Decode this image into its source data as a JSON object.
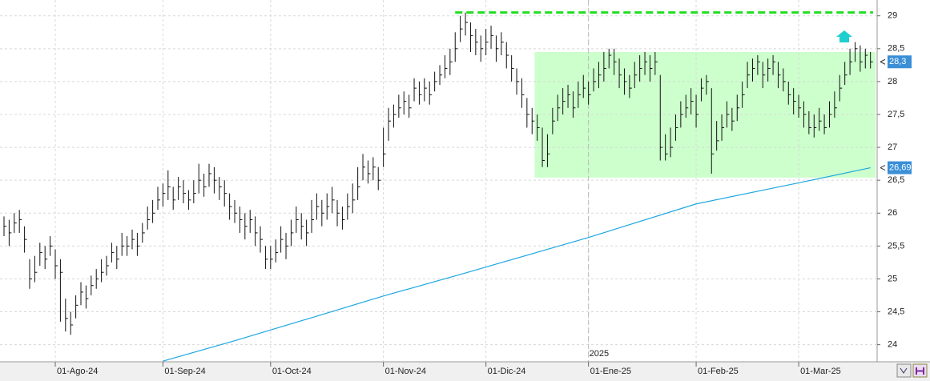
{
  "chart_data": {
    "type": "ohlc",
    "color": "#111111",
    "xlim": [
      -0.78,
      170.3
    ],
    "ylim": [
      23.74,
      29.24
    ],
    "grid": true,
    "yticks": [
      24,
      {
        "value": 24.5,
        "label": "24,5"
      },
      25,
      {
        "value": 25.5,
        "label": "25,5"
      },
      26,
      {
        "value": 26.5,
        "label": "26,5"
      },
      27,
      {
        "value": 27.5,
        "label": "27,5"
      },
      28,
      {
        "value": 28.5,
        "label": "28,5"
      },
      29
    ],
    "xticks": [
      {
        "value": 10,
        "label": "01-Ago-24"
      },
      {
        "value": 31,
        "label": "01-Sep-24"
      },
      {
        "value": 52,
        "label": "01-Oct-24"
      },
      {
        "value": 74,
        "label": "01-Nov-24"
      },
      {
        "value": 94,
        "label": "01-Dic-24"
      },
      {
        "value": 114,
        "label": "01-Ene-25"
      },
      {
        "value": 135,
        "label": "01-Feb-25"
      },
      {
        "value": 155,
        "label": "01-Mar-25"
      }
    ],
    "year_label": {
      "value": 114,
      "label": "2025"
    },
    "high": [
      25.95,
      25.9,
      26.0,
      26.05,
      25.8,
      25.3,
      25.35,
      25.55,
      25.5,
      25.65,
      25.45,
      25.3,
      24.7,
      24.5,
      24.75,
      24.95,
      24.9,
      25.05,
      25.15,
      25.3,
      25.35,
      25.55,
      25.5,
      25.7,
      25.65,
      25.75,
      25.7,
      25.85,
      26.1,
      26.2,
      26.4,
      26.45,
      26.65,
      26.4,
      26.55,
      26.5,
      26.35,
      26.5,
      26.75,
      26.6,
      26.75,
      26.7,
      26.55,
      26.5,
      26.3,
      26.2,
      26.1,
      26.0,
      26.05,
      25.95,
      25.8,
      25.5,
      25.5,
      25.6,
      25.8,
      25.7,
      25.9,
      26.1,
      26.0,
      25.9,
      26.2,
      26.3,
      26.2,
      26.3,
      26.4,
      26.2,
      26.1,
      26.3,
      26.45,
      26.7,
      26.9,
      26.8,
      26.85,
      26.7,
      27.3,
      27.6,
      27.65,
      27.8,
      27.85,
      27.8,
      28.05,
      28.0,
      28.05,
      28.0,
      28.15,
      28.25,
      28.4,
      28.5,
      28.75,
      29.0,
      29.05,
      28.9,
      28.8,
      28.7,
      28.8,
      28.85,
      28.7,
      28.75,
      28.6,
      28.4,
      28.2,
      28.05,
      27.75,
      27.6,
      27.5,
      27.3,
      27.2,
      27.6,
      27.8,
      27.9,
      27.95,
      27.85,
      28.0,
      28.1,
      28.0,
      28.2,
      28.3,
      28.45,
      28.5,
      28.5,
      28.35,
      28.2,
      28.1,
      28.3,
      28.4,
      28.45,
      28.4,
      28.45,
      28.1,
      27.2,
      27.3,
      27.5,
      27.7,
      27.8,
      27.9,
      27.8,
      28.05,
      28.1,
      27.9,
      27.4,
      27.5,
      27.7,
      27.6,
      27.8,
      28.0,
      28.3,
      28.35,
      28.4,
      28.3,
      28.35,
      28.4,
      28.3,
      28.2,
      28.0,
      27.9,
      27.8,
      27.7,
      27.55,
      27.5,
      27.6,
      27.5,
      27.7,
      27.85,
      28.1,
      28.3,
      28.5,
      28.6,
      28.55,
      28.5,
      28.45
    ],
    "low": [
      25.65,
      25.5,
      25.7,
      25.7,
      25.4,
      24.85,
      24.95,
      25.2,
      25.15,
      25.35,
      25.0,
      24.35,
      24.2,
      24.15,
      24.4,
      24.6,
      24.55,
      24.75,
      24.85,
      24.95,
      25.05,
      25.25,
      25.15,
      25.35,
      25.35,
      25.45,
      25.35,
      25.55,
      25.75,
      25.85,
      26.05,
      26.1,
      26.2,
      26.05,
      26.2,
      26.15,
      26.05,
      26.15,
      26.3,
      26.25,
      26.4,
      26.3,
      26.2,
      26.1,
      25.9,
      25.85,
      25.7,
      25.6,
      25.7,
      25.5,
      25.4,
      25.15,
      25.15,
      25.25,
      25.4,
      25.3,
      25.5,
      25.7,
      25.6,
      25.5,
      25.7,
      25.9,
      25.8,
      25.9,
      26.0,
      25.8,
      25.75,
      25.9,
      26.0,
      26.2,
      26.5,
      26.45,
      26.5,
      26.35,
      26.7,
      27.1,
      27.3,
      27.45,
      27.5,
      27.45,
      27.7,
      27.65,
      27.7,
      27.65,
      27.85,
      27.95,
      28.05,
      28.1,
      28.3,
      28.6,
      28.7,
      28.45,
      28.4,
      28.3,
      28.4,
      28.5,
      28.3,
      28.4,
      28.2,
      28.0,
      27.8,
      27.6,
      27.3,
      27.2,
      27.1,
      26.7,
      26.7,
      27.2,
      27.4,
      27.5,
      27.6,
      27.45,
      27.6,
      27.75,
      27.65,
      27.85,
      27.9,
      28.0,
      28.2,
      28.1,
      27.9,
      27.8,
      27.75,
      27.9,
      28.0,
      28.1,
      28.0,
      28.1,
      26.8,
      26.8,
      26.85,
      27.1,
      27.3,
      27.45,
      27.5,
      27.3,
      27.7,
      27.8,
      26.6,
      26.95,
      27.1,
      27.3,
      27.25,
      27.4,
      27.6,
      27.9,
      28.0,
      28.1,
      27.9,
      28.0,
      28.1,
      27.9,
      27.85,
      27.65,
      27.5,
      27.45,
      27.3,
      27.2,
      27.15,
      27.25,
      27.2,
      27.3,
      27.45,
      27.7,
      27.95,
      28.1,
      28.3,
      28.15,
      28.2,
      28.2
    ],
    "close": [
      25.8,
      25.7,
      25.85,
      25.9,
      25.6,
      25.0,
      25.1,
      25.4,
      25.3,
      25.5,
      25.2,
      25.1,
      24.4,
      24.3,
      24.6,
      24.8,
      24.7,
      24.9,
      25.0,
      25.1,
      25.2,
      25.4,
      25.3,
      25.5,
      25.5,
      25.6,
      25.5,
      25.7,
      25.9,
      26.0,
      26.2,
      26.3,
      26.4,
      26.2,
      26.4,
      26.3,
      26.2,
      26.3,
      26.5,
      26.4,
      26.6,
      26.5,
      26.4,
      26.3,
      26.1,
      26.0,
      25.9,
      25.8,
      25.9,
      25.7,
      25.6,
      25.3,
      25.3,
      25.4,
      25.6,
      25.5,
      25.7,
      25.9,
      25.8,
      25.7,
      25.9,
      26.1,
      26.0,
      26.1,
      26.2,
      26.0,
      25.9,
      26.1,
      26.2,
      26.4,
      26.7,
      26.6,
      26.7,
      26.5,
      26.9,
      27.4,
      27.5,
      27.6,
      27.7,
      27.6,
      27.9,
      27.8,
      27.9,
      27.8,
      28.0,
      28.1,
      28.2,
      28.3,
      28.5,
      28.8,
      28.9,
      28.7,
      28.6,
      28.5,
      28.6,
      28.7,
      28.5,
      28.6,
      28.4,
      28.2,
      28.0,
      27.8,
      27.5,
      27.4,
      27.3,
      26.8,
      26.9,
      27.4,
      27.6,
      27.7,
      27.8,
      27.6,
      27.8,
      27.9,
      27.8,
      28.0,
      28.1,
      28.2,
      28.4,
      28.3,
      28.1,
      28.0,
      27.9,
      28.1,
      28.2,
      28.3,
      28.2,
      28.3,
      27.0,
      26.9,
      27.0,
      27.3,
      27.5,
      27.6,
      27.7,
      27.5,
      27.9,
      28.0,
      26.9,
      27.1,
      27.3,
      27.5,
      27.4,
      27.6,
      27.8,
      28.1,
      28.2,
      28.3,
      28.1,
      28.2,
      28.3,
      28.1,
      28.0,
      27.8,
      27.7,
      27.6,
      27.5,
      27.3,
      27.3,
      27.4,
      27.3,
      27.5,
      27.6,
      27.9,
      28.1,
      28.3,
      28.5,
      28.3,
      28.4,
      28.3
    ],
    "close_label": {
      "value": 28.3,
      "label": "28,3"
    },
    "moving_average": {
      "color": "#1ea7e1",
      "x": [
        31,
        45,
        60,
        74,
        90,
        114,
        135,
        155,
        169
      ],
      "values": [
        23.75,
        24.06,
        24.41,
        24.74,
        25.09,
        25.63,
        26.14,
        26.46,
        26.69
      ],
      "last_label": {
        "value": 26.69,
        "label": "26,69"
      }
    },
    "resistance": {
      "value": 29.05,
      "x": [
        88,
        169.5
      ],
      "color": "#22dd22"
    },
    "range_box": {
      "xlim": [
        103.5,
        170
      ],
      "ylim": [
        26.54,
        28.45
      ],
      "color": "#ccffcc"
    }
  }
}
